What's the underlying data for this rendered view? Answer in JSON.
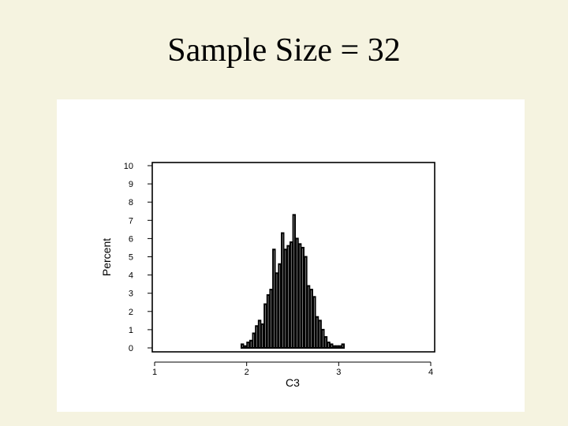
{
  "slide": {
    "title": "Sample Size = 32"
  },
  "chart_data": {
    "type": "bar",
    "title": "",
    "xlabel": "C3",
    "ylabel": "Percent",
    "xlim": [
      1,
      4
    ],
    "ylim": [
      0,
      10
    ],
    "x_ticks": [
      1,
      2,
      3,
      4
    ],
    "y_ticks": [
      0,
      1,
      2,
      3,
      4,
      5,
      6,
      7,
      8,
      9,
      10
    ],
    "grid": false,
    "bin_width": 0.03125,
    "bins": [
      {
        "x": 1.953125,
        "value": 0.2
      },
      {
        "x": 1.984375,
        "value": 0.1
      },
      {
        "x": 2.015625,
        "value": 0.3
      },
      {
        "x": 2.046875,
        "value": 0.4
      },
      {
        "x": 2.078125,
        "value": 0.8
      },
      {
        "x": 2.109375,
        "value": 1.2
      },
      {
        "x": 2.140625,
        "value": 1.5
      },
      {
        "x": 2.171875,
        "value": 1.3
      },
      {
        "x": 2.203125,
        "value": 2.4
      },
      {
        "x": 2.234375,
        "value": 2.9
      },
      {
        "x": 2.265625,
        "value": 3.2
      },
      {
        "x": 2.296875,
        "value": 5.4
      },
      {
        "x": 2.328125,
        "value": 4.1
      },
      {
        "x": 2.359375,
        "value": 4.6
      },
      {
        "x": 2.390625,
        "value": 6.3
      },
      {
        "x": 2.421875,
        "value": 5.4
      },
      {
        "x": 2.453125,
        "value": 5.6
      },
      {
        "x": 2.484375,
        "value": 5.8
      },
      {
        "x": 2.515625,
        "value": 7.3
      },
      {
        "x": 2.546875,
        "value": 6.0
      },
      {
        "x": 2.578125,
        "value": 5.7
      },
      {
        "x": 2.609375,
        "value": 5.5
      },
      {
        "x": 2.640625,
        "value": 5.0
      },
      {
        "x": 2.671875,
        "value": 3.4
      },
      {
        "x": 2.703125,
        "value": 3.2
      },
      {
        "x": 2.734375,
        "value": 2.8
      },
      {
        "x": 2.765625,
        "value": 1.7
      },
      {
        "x": 2.796875,
        "value": 1.5
      },
      {
        "x": 2.828125,
        "value": 1.0
      },
      {
        "x": 2.859375,
        "value": 0.6
      },
      {
        "x": 2.890625,
        "value": 0.3
      },
      {
        "x": 2.921875,
        "value": 0.2
      },
      {
        "x": 2.953125,
        "value": 0.1
      },
      {
        "x": 2.984375,
        "value": 0.1
      },
      {
        "x": 3.015625,
        "value": 0.1
      },
      {
        "x": 3.046875,
        "value": 0.2
      }
    ],
    "colors": {
      "bar_fill": "#ffffff",
      "bar_stroke": "#000000",
      "panel_background": "#ffffff",
      "slide_background": "#f5f3e0"
    }
  }
}
